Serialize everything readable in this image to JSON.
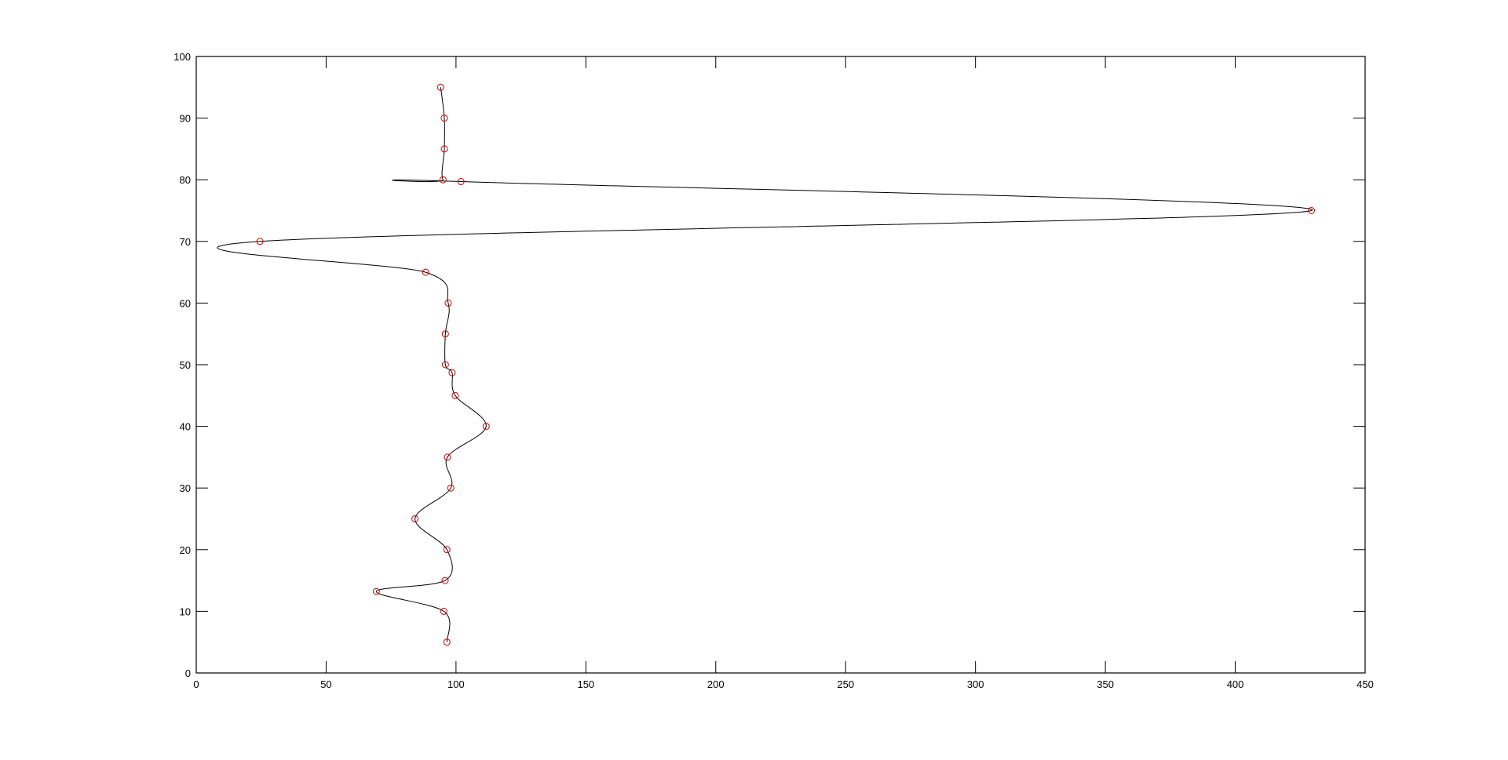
{
  "chart_data": {
    "type": "line",
    "title": "",
    "xlabel": "",
    "ylabel": "",
    "xlim": [
      0,
      450
    ],
    "ylim": [
      0,
      100
    ],
    "xticks": [
      0,
      50,
      100,
      150,
      200,
      250,
      300,
      350,
      400,
      450
    ],
    "yticks": [
      0,
      10,
      20,
      30,
      40,
      50,
      60,
      70,
      80,
      90,
      100
    ],
    "grid": false,
    "line_color": "#000000",
    "marker": "circle",
    "marker_color": "#cc0000",
    "curve": "smooth spline through points",
    "points": [
      {
        "x": 96.5,
        "y": 5
      },
      {
        "x": 95.3,
        "y": 10
      },
      {
        "x": 69.3,
        "y": 13.2
      },
      {
        "x": 95.8,
        "y": 15
      },
      {
        "x": 96.5,
        "y": 20
      },
      {
        "x": 84.2,
        "y": 25
      },
      {
        "x": 98.0,
        "y": 30
      },
      {
        "x": 96.7,
        "y": 35
      },
      {
        "x": 111.6,
        "y": 40
      },
      {
        "x": 99.7,
        "y": 45
      },
      {
        "x": 98.5,
        "y": 48.7
      },
      {
        "x": 95.9,
        "y": 50
      },
      {
        "x": 95.9,
        "y": 55
      },
      {
        "x": 97.0,
        "y": 60
      },
      {
        "x": 88.3,
        "y": 65
      },
      {
        "x": 24.5,
        "y": 70
      },
      {
        "x": 429.3,
        "y": 75
      },
      {
        "x": 101.9,
        "y": 79.7
      },
      {
        "x": 95.0,
        "y": 80
      },
      {
        "x": 95.5,
        "y": 85
      },
      {
        "x": 95.5,
        "y": 90
      },
      {
        "x": 94.1,
        "y": 95
      }
    ]
  }
}
